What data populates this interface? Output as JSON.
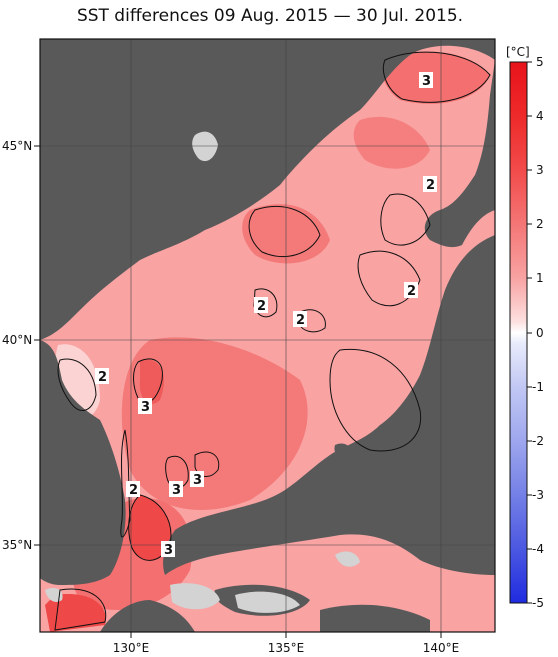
{
  "title": "SST differences 09 Aug. 2015 — 30 Jul. 2015.",
  "colorbar": {
    "unit": "[°C]",
    "ticks": [
      "5",
      "4",
      "3",
      "2",
      "1",
      "0",
      "-1",
      "-2",
      "-3",
      "-4",
      "-5"
    ]
  },
  "axes": {
    "lat_labels": [
      "45°N",
      "40°N",
      "35°N"
    ],
    "lon_labels": [
      "130°E",
      "135°E",
      "140°E"
    ]
  },
  "contour_labels": [
    "3",
    "2",
    "2",
    "2",
    "2",
    "2",
    "3",
    "2",
    "3",
    "3",
    "3"
  ],
  "colors": {
    "land": "#595959",
    "sea_base": "#f9a3a3",
    "sea_warm": "#f47070",
    "sea_hot": "#ef4848",
    "sea_cool": "#fcd3d3",
    "missing": "#d3d3d3"
  }
}
